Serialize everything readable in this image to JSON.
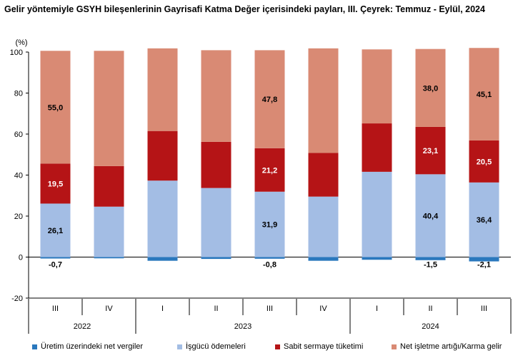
{
  "chart_data": {
    "type": "bar",
    "stacked": true,
    "title": "Gelir yöntemiyle GSYH bileşenlerinin Gayrisafi Katma Değer içerisindeki payları, III. Çeyrek: Temmuz - Eylül, 2024",
    "y_unit_label": "(%)",
    "ylim": [
      -20,
      100
    ],
    "yticks": [
      "-20",
      "0",
      "20",
      "40",
      "60",
      "80",
      "100"
    ],
    "categories": [
      "III",
      "IV",
      "I",
      "II",
      "III",
      "IV",
      "I",
      "II",
      "III"
    ],
    "year_groups": [
      {
        "label": "2022",
        "start": 0,
        "end": 1
      },
      {
        "label": "2023",
        "start": 2,
        "end": 5
      },
      {
        "label": "2024",
        "start": 6,
        "end": 8
      }
    ],
    "legend_position": "bottom",
    "series": [
      {
        "name": "Üretim üzerindeki net vergiler",
        "color": "#2a78bd",
        "values": [
          -0.7,
          -0.6,
          -1.8,
          -0.9,
          -0.8,
          -1.8,
          -1.3,
          -1.5,
          -2.1
        ]
      },
      {
        "name": "İşgücü ödemeleri",
        "color": "#a3bde4",
        "values": [
          26.1,
          24.6,
          37.3,
          33.7,
          31.9,
          29.5,
          41.6,
          40.4,
          36.4
        ]
      },
      {
        "name": "Sabit sermaye tüketimi",
        "color": "#b51416",
        "values": [
          19.5,
          19.8,
          24.2,
          22.5,
          21.2,
          21.3,
          23.6,
          23.1,
          20.5
        ]
      },
      {
        "name": "Net işletme artığı/Karma gelir",
        "color": "#d98a74",
        "values": [
          55.0,
          56.2,
          40.3,
          44.7,
          47.8,
          51.0,
          36.1,
          38.0,
          45.1
        ]
      }
    ],
    "data_labels": [
      {
        "category_index": 0,
        "series_index": 0,
        "text": "-0,7"
      },
      {
        "category_index": 0,
        "series_index": 1,
        "text": "26,1"
      },
      {
        "category_index": 0,
        "series_index": 2,
        "text": "19,5"
      },
      {
        "category_index": 0,
        "series_index": 3,
        "text": "55,0"
      },
      {
        "category_index": 4,
        "series_index": 0,
        "text": "-0,8"
      },
      {
        "category_index": 4,
        "series_index": 1,
        "text": "31,9"
      },
      {
        "category_index": 4,
        "series_index": 2,
        "text": "21,2"
      },
      {
        "category_index": 4,
        "series_index": 3,
        "text": "47,8"
      },
      {
        "category_index": 7,
        "series_index": 0,
        "text": "-1,5"
      },
      {
        "category_index": 7,
        "series_index": 1,
        "text": "40,4"
      },
      {
        "category_index": 7,
        "series_index": 2,
        "text": "23,1"
      },
      {
        "category_index": 7,
        "series_index": 3,
        "text": "38,0"
      },
      {
        "category_index": 8,
        "series_index": 0,
        "text": "-2,1"
      },
      {
        "category_index": 8,
        "series_index": 1,
        "text": "36,4"
      },
      {
        "category_index": 8,
        "series_index": 2,
        "text": "20,5"
      },
      {
        "category_index": 8,
        "series_index": 3,
        "text": "45,1"
      }
    ]
  }
}
